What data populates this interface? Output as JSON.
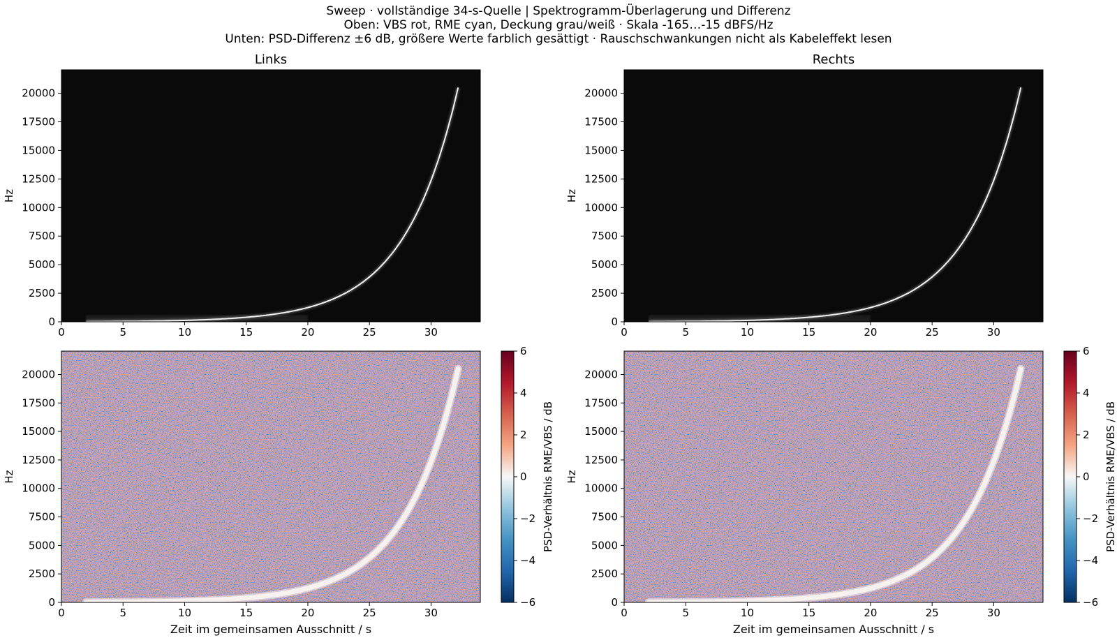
{
  "figure": {
    "title_lines": [
      "Sweep · vollständige 34-s-Quelle | Spektrogramm-Überlagerung und Differenz",
      "Oben: VBS rot, RME cyan, Deckung grau/weiß · Skala -165…-15 dBFS/Hz",
      "Unten: PSD-Differenz ±6 dB, größere Werte farblich gesättigt · Rauschschwankungen nicht als Kabeleffekt lesen"
    ]
  },
  "chart_data": [
    {
      "id": "overlay-left",
      "type": "heatmap",
      "title": "Links",
      "xlabel": "",
      "ylabel": "Hz",
      "xlim": [
        0,
        34
      ],
      "ylim": [
        0,
        22050
      ],
      "xticks": [
        0,
        5,
        10,
        15,
        20,
        25,
        30
      ],
      "yticks": [
        0,
        2500,
        5000,
        7500,
        10000,
        12500,
        15000,
        17500,
        20000
      ],
      "background": "#0a0a0a",
      "sweep": {
        "t_start": 2,
        "t_end": 32.2,
        "f_start": 20,
        "f_end": 20500,
        "color": "#f2f2f2"
      }
    },
    {
      "id": "overlay-right",
      "type": "heatmap",
      "title": "Rechts",
      "xlabel": "",
      "ylabel": "Hz",
      "xlim": [
        0,
        34
      ],
      "ylim": [
        0,
        22050
      ],
      "xticks": [
        0,
        5,
        10,
        15,
        20,
        25,
        30
      ],
      "yticks": [
        0,
        2500,
        5000,
        7500,
        10000,
        12500,
        15000,
        17500,
        20000
      ],
      "background": "#0a0a0a",
      "sweep": {
        "t_start": 2,
        "t_end": 32.2,
        "f_start": 20,
        "f_end": 20500,
        "color": "#f2f2f2"
      }
    },
    {
      "id": "diff-left",
      "type": "heatmap",
      "title": "",
      "xlabel": "Zeit im gemeinsamen Ausschnitt / s",
      "ylabel": "Hz",
      "xlim": [
        0,
        34
      ],
      "ylim": [
        0,
        22050
      ],
      "xticks": [
        0,
        5,
        10,
        15,
        20,
        25,
        30
      ],
      "yticks": [
        0,
        2500,
        5000,
        7500,
        10000,
        12500,
        15000,
        17500,
        20000
      ],
      "colormap": "RdBu_r",
      "clim": [
        -6,
        6
      ],
      "sweep": {
        "t_start": 2,
        "t_end": 32.2,
        "f_start": 20,
        "f_end": 20500,
        "color": "#f7f2f0"
      },
      "colorbar": {
        "label": "PSD-Verhältnis RME/VBS / dB",
        "ticks": [
          "6",
          "4",
          "2",
          "0",
          "−2",
          "−4",
          "−6"
        ]
      }
    },
    {
      "id": "diff-right",
      "type": "heatmap",
      "title": "",
      "xlabel": "Zeit im gemeinsamen Ausschnitt / s",
      "ylabel": "Hz",
      "xlim": [
        0,
        34
      ],
      "ylim": [
        0,
        22050
      ],
      "xticks": [
        0,
        5,
        10,
        15,
        20,
        25,
        30
      ],
      "yticks": [
        0,
        2500,
        5000,
        7500,
        10000,
        12500,
        15000,
        17500,
        20000
      ],
      "colormap": "RdBu_r",
      "clim": [
        -6,
        6
      ],
      "sweep": {
        "t_start": 2,
        "t_end": 32.2,
        "f_start": 20,
        "f_end": 20500,
        "color": "#f7f2f0"
      },
      "colorbar": {
        "label": "PSD-Verhältnis RME/VBS / dB",
        "ticks": [
          "6",
          "4",
          "2",
          "0",
          "−2",
          "−4",
          "−6"
        ]
      }
    }
  ]
}
